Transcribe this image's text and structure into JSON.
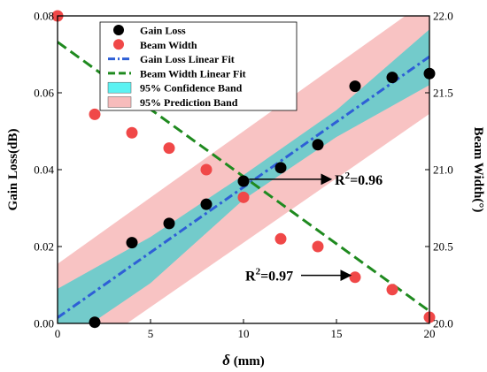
{
  "chart_data": {
    "type": "scatter",
    "xlabel": "δ (mm)",
    "ylabel_left": "Gain Loss(dB)",
    "ylabel_right": "Beam Width(°)",
    "xlim": [
      0,
      20
    ],
    "ylim_left": [
      0,
      0.08
    ],
    "ylim_right": [
      20.0,
      22.0
    ],
    "x_ticks": [
      0,
      5,
      10,
      15,
      20
    ],
    "x_tick_labels": [
      "0",
      "5",
      "10",
      "15",
      "20"
    ],
    "y_left_ticks": [
      0,
      0.02,
      0.04,
      0.06,
      0.08
    ],
    "y_left_tick_labels": [
      "0.00",
      "0.02",
      "0.04",
      "0.06",
      "0.08"
    ],
    "y_right_ticks": [
      20.0,
      20.5,
      21.0,
      21.5,
      22.0
    ],
    "y_right_tick_labels": [
      "20.0",
      "20.5",
      "21.0",
      "21.5",
      "22.0"
    ],
    "grid": false,
    "legend_position": "top-left",
    "series": [
      {
        "name": "Gain Loss",
        "axis": "left",
        "kind": "points",
        "color": "#000000",
        "x": [
          2,
          4,
          6,
          8,
          10,
          12,
          14,
          16,
          18,
          20
        ],
        "y": [
          0.0003,
          0.021,
          0.026,
          0.031,
          0.037,
          0.0405,
          0.0465,
          0.0617,
          0.064,
          0.065
        ]
      },
      {
        "name": "Beam Width",
        "axis": "right",
        "kind": "points",
        "color": "#f04848",
        "x": [
          0,
          2,
          4,
          6,
          8,
          10,
          12,
          14,
          16,
          18,
          20
        ],
        "y": [
          22.0,
          21.36,
          21.24,
          21.14,
          21.0,
          20.82,
          20.55,
          20.5,
          20.3,
          20.22,
          20.04
        ]
      },
      {
        "name": "Gain Loss  Linear Fit",
        "axis": "left",
        "kind": "line",
        "color": "#2e5fd6",
        "dash": "dash-dot",
        "x": [
          0,
          20
        ],
        "y": [
          0.0015,
          0.0694
        ]
      },
      {
        "name": "Beam Width  Linear Fit",
        "axis": "right",
        "kind": "line",
        "color": "#1f8a1f",
        "dash": "dash",
        "x": [
          0,
          20
        ],
        "y": [
          21.83,
          20.08
        ]
      }
    ],
    "bands": [
      {
        "name": "95% Confidence Band",
        "fill": "#5ccccc",
        "axis": "left",
        "x": [
          0,
          5,
          10,
          15,
          20
        ],
        "upper": [
          0.009,
          0.0225,
          0.0386,
          0.0555,
          0.0765
        ],
        "lower": [
          -0.006,
          0.0105,
          0.0322,
          0.0485,
          0.062
        ]
      },
      {
        "name": "95% Prediction Band",
        "fill": "#f7bcbc",
        "axis": "left",
        "x": [
          0,
          20
        ],
        "upper": [
          0.0155,
          0.0845
        ],
        "lower": [
          -0.0125,
          0.0545
        ]
      }
    ],
    "legend": [
      {
        "label": "Gain Loss",
        "marker": "dot",
        "color": "#000000"
      },
      {
        "label": "Beam Width",
        "marker": "dot",
        "color": "#f04848"
      },
      {
        "label": "Gain Loss  Linear Fit",
        "marker": "dashdot",
        "color": "#2e5fd6"
      },
      {
        "label": "Beam Width  Linear Fit",
        "marker": "dash",
        "color": "#1f8a1f"
      },
      {
        "label": "95% Confidence Band",
        "marker": "box",
        "color": "#5cf2f2"
      },
      {
        "label": "95% Prediction Band",
        "marker": "box",
        "color": "#f7bcbc"
      }
    ],
    "annotations": [
      {
        "text_main": "R",
        "text_sup": "2",
        "text_tail": "=0.96",
        "arrow": "right",
        "x": 10.3,
        "y_left": 0.0375
      },
      {
        "text_main": "R",
        "text_sup": "2",
        "text_tail": "=0.97",
        "arrow": "right",
        "x": 16.5,
        "y_left": 0.0125
      }
    ]
  }
}
